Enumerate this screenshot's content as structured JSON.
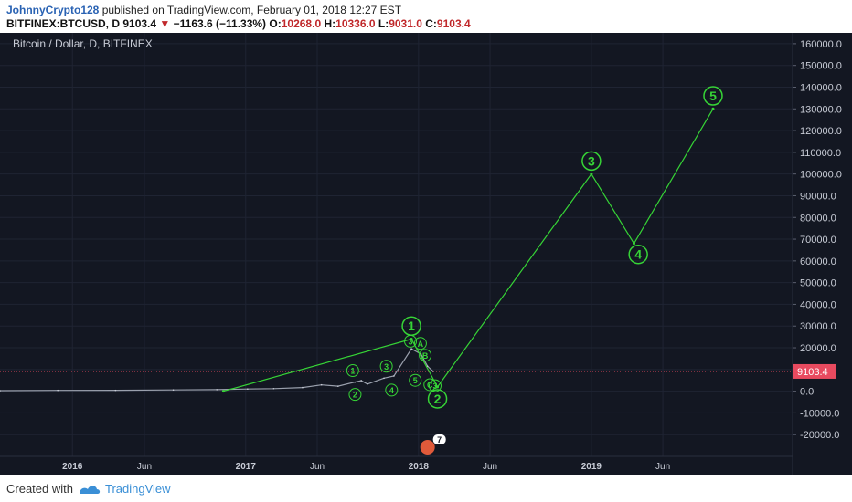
{
  "header": {
    "author": "JohnnyCrypto128",
    "published": "published on TradingView.com, February 01, 2018 12:27 EST",
    "symbol": "BITFINEX:BTCUSD, D",
    "last": "9103.4",
    "change_arrow": "▼",
    "change": "−1163.6 (−11.33%)",
    "open_label": "O:",
    "open": "10268.0",
    "high_label": "H:",
    "high": "10336.0",
    "low_label": "L:",
    "low": "9031.0",
    "close_label": "C:",
    "close": "9103.4"
  },
  "footer": {
    "created": "Created with",
    "brand": "TradingView",
    "logo_icon": "tradingview-logo-icon"
  },
  "colors": {
    "background": "#131722",
    "wave": "#36d436",
    "price_line": "#e84a5f",
    "price_tag": "#e84a5f",
    "axis_text": "#c8ccd6",
    "grid": "#1f2433"
  },
  "chart_data": {
    "type": "line",
    "title": "Bitcoin / Dollar, D, BITFINEX",
    "xlabel": "",
    "ylabel": "",
    "x_ticks": [
      "2016",
      "Jun",
      "2017",
      "Jun",
      "2018",
      "Jun",
      "2019",
      "Jun"
    ],
    "y_ticks": [
      -20000,
      -10000,
      0,
      10000,
      20000,
      30000,
      40000,
      50000,
      60000,
      70000,
      80000,
      90000,
      100000,
      110000,
      120000,
      130000,
      140000,
      150000,
      160000
    ],
    "y_tick_labels": [
      "-20000.0",
      "-10000.0",
      "0.0",
      "10000.0",
      "20000.0",
      "30000.0",
      "40000.0",
      "50000.0",
      "60000.0",
      "70000.0",
      "80000.0",
      "90000.0",
      "100000.0",
      "110000.0",
      "120000.0",
      "130000.0",
      "140000.0",
      "150000.0",
      "160000.0"
    ],
    "ylim": [
      -30000,
      165000
    ],
    "xlim": [
      "2015-08-01",
      "2020-03-01"
    ],
    "grid": true,
    "current_price": 9103.4,
    "current_price_label": "9103.4",
    "events_badge": "7",
    "series": [
      {
        "type": "price",
        "x": [
          "2015-08-01",
          "2015-12-01",
          "2016-04-01",
          "2016-08-01",
          "2016-11-01",
          "2017-01-05",
          "2017-03-01",
          "2017-05-01",
          "2017-06-10",
          "2017-07-15",
          "2017-08-20",
          "2017-09-02",
          "2017-09-15",
          "2017-10-20",
          "2017-11-10",
          "2017-12-17",
          "2018-01-06",
          "2018-01-20",
          "2018-02-01"
        ],
        "y": [
          250,
          400,
          420,
          600,
          710,
          1000,
          1200,
          1700,
          2900,
          2300,
          4200,
          4900,
          3300,
          6000,
          7000,
          19500,
          17100,
          11500,
          9103.4
        ]
      },
      {
        "type": "wave",
        "x": [
          "2016-11-15",
          "2017-12-17",
          "2018-02-10",
          "2019-01-01",
          "2019-04-01",
          "2019-09-15"
        ],
        "y": [
          0,
          24000,
          2000,
          100000,
          68000,
          130000
        ]
      }
    ],
    "annotations": [
      {
        "label": "1",
        "x": "2017-12-17",
        "y": 30000,
        "size": "large"
      },
      {
        "label": "2",
        "x": "2018-02-10",
        "y": -3500,
        "size": "large"
      },
      {
        "label": "3",
        "x": "2019-01-01",
        "y": 106000,
        "size": "large"
      },
      {
        "label": "4",
        "x": "2019-04-10",
        "y": 63000,
        "size": "large"
      },
      {
        "label": "5",
        "x": "2019-09-15",
        "y": 136000,
        "size": "large"
      },
      {
        "label": "1",
        "x": "2017-08-15",
        "y": 9500,
        "size": "small"
      },
      {
        "label": "2",
        "x": "2017-08-20",
        "y": -1500,
        "size": "small"
      },
      {
        "label": "3",
        "x": "2017-10-25",
        "y": 11500,
        "size": "small"
      },
      {
        "label": "4",
        "x": "2017-11-05",
        "y": 500,
        "size": "small"
      },
      {
        "label": "3",
        "x": "2017-12-15",
        "y": 23000,
        "size": "small"
      },
      {
        "label": "A",
        "x": "2018-01-05",
        "y": 22000,
        "size": "small"
      },
      {
        "label": "B",
        "x": "2018-01-15",
        "y": 16500,
        "size": "small"
      },
      {
        "label": "C",
        "x": "2018-01-25",
        "y": 3000,
        "size": "small"
      },
      {
        "label": "5",
        "x": "2017-12-25",
        "y": 5000,
        "size": "small"
      },
      {
        "label": "3",
        "x": "2018-02-05",
        "y": 2500,
        "size": "small"
      }
    ]
  }
}
